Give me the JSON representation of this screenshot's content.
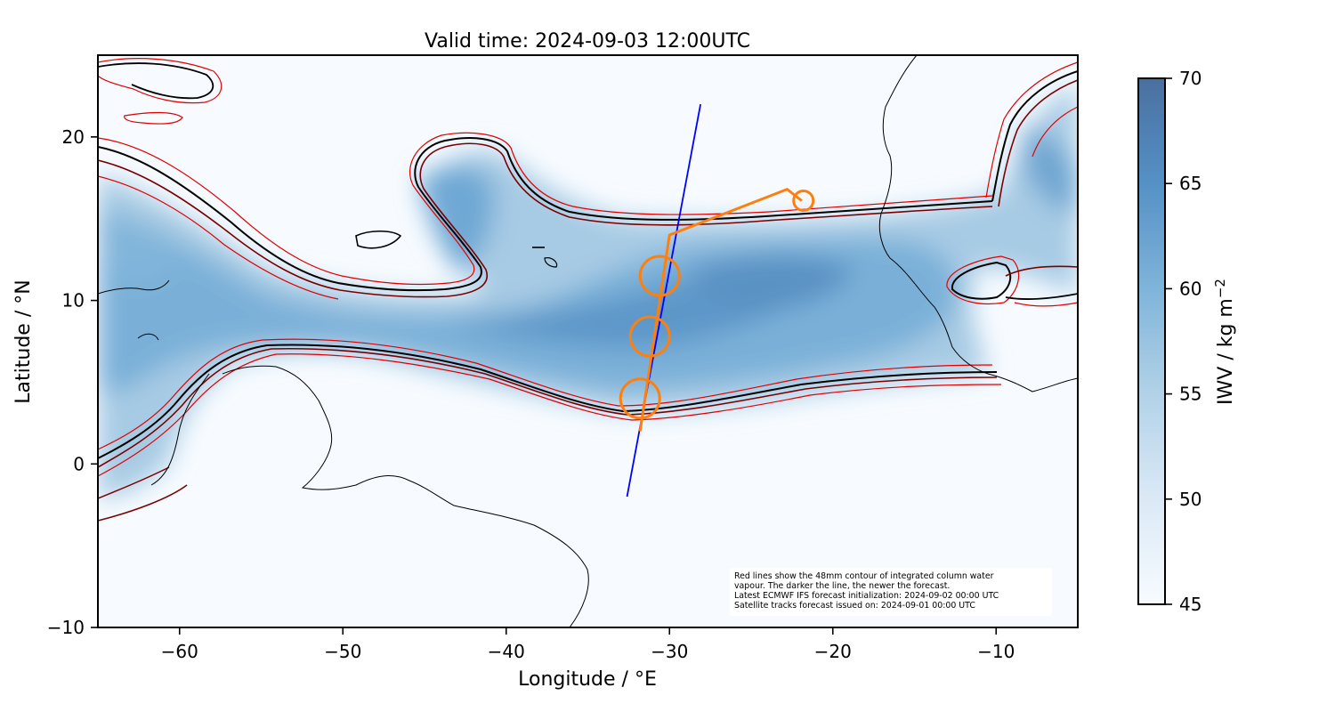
{
  "title": "Valid time: 2024-09-03 12:00UTC",
  "x_axis": {
    "label": "Longitude / °E",
    "range": [
      -65,
      -5
    ],
    "ticks": [
      -60,
      -50,
      -40,
      -30,
      -20,
      -10
    ],
    "tick_labels": [
      "−60",
      "−50",
      "−40",
      "−30",
      "−20",
      "−10"
    ]
  },
  "y_axis": {
    "label": "Latitude / °N",
    "range": [
      -10,
      25
    ],
    "ticks": [
      -10,
      0,
      10,
      20
    ],
    "tick_labels": [
      "−10",
      "0",
      "10",
      "20"
    ]
  },
  "colorbar": {
    "label": "IWV / kg m",
    "label_superscript": "−2",
    "range": [
      45,
      70
    ],
    "ticks": [
      45,
      50,
      55,
      60,
      65,
      70
    ],
    "tick_labels": [
      "45",
      "50",
      "55",
      "60",
      "65",
      "70"
    ],
    "colormap": "Blues",
    "color_low": "#f7fbff",
    "color_high": "#4a6fa0"
  },
  "annotation": {
    "lines": [
      "Red lines show the 48mm contour of integrated column water",
      "vapour. The darker the line, the newer the forecast.",
      "Latest ECMWF IFS forecast initialization: 2024-09-02 00:00 UTC",
      "Satellite tracks forecast issued on: 2024-09-01 00:00 UTC"
    ]
  },
  "colors": {
    "contour_newest": "#000000",
    "contour_mid": "#7a0000",
    "contour_oldest": "#e00000",
    "satellite_track": "#0000ff",
    "flight_track": "#ff7f0e",
    "coastline": "#000000"
  },
  "chart_data": {
    "type": "map",
    "satellite_track": [
      [
        -32.6,
        -2.0
      ],
      [
        -28.1,
        22.0
      ]
    ],
    "flight_track": [
      [
        -31.8,
        2.0
      ],
      [
        -30.0,
        14.0
      ],
      [
        -22.8,
        16.8
      ],
      [
        -21.9,
        16.1
      ]
    ],
    "flight_circles": [
      {
        "lon": -31.8,
        "lat": 4.0
      },
      {
        "lon": -31.2,
        "lat": 7.8
      },
      {
        "lon": -30.6,
        "lat": 11.5
      },
      {
        "lon": -21.8,
        "lat": 16.1
      }
    ]
  }
}
